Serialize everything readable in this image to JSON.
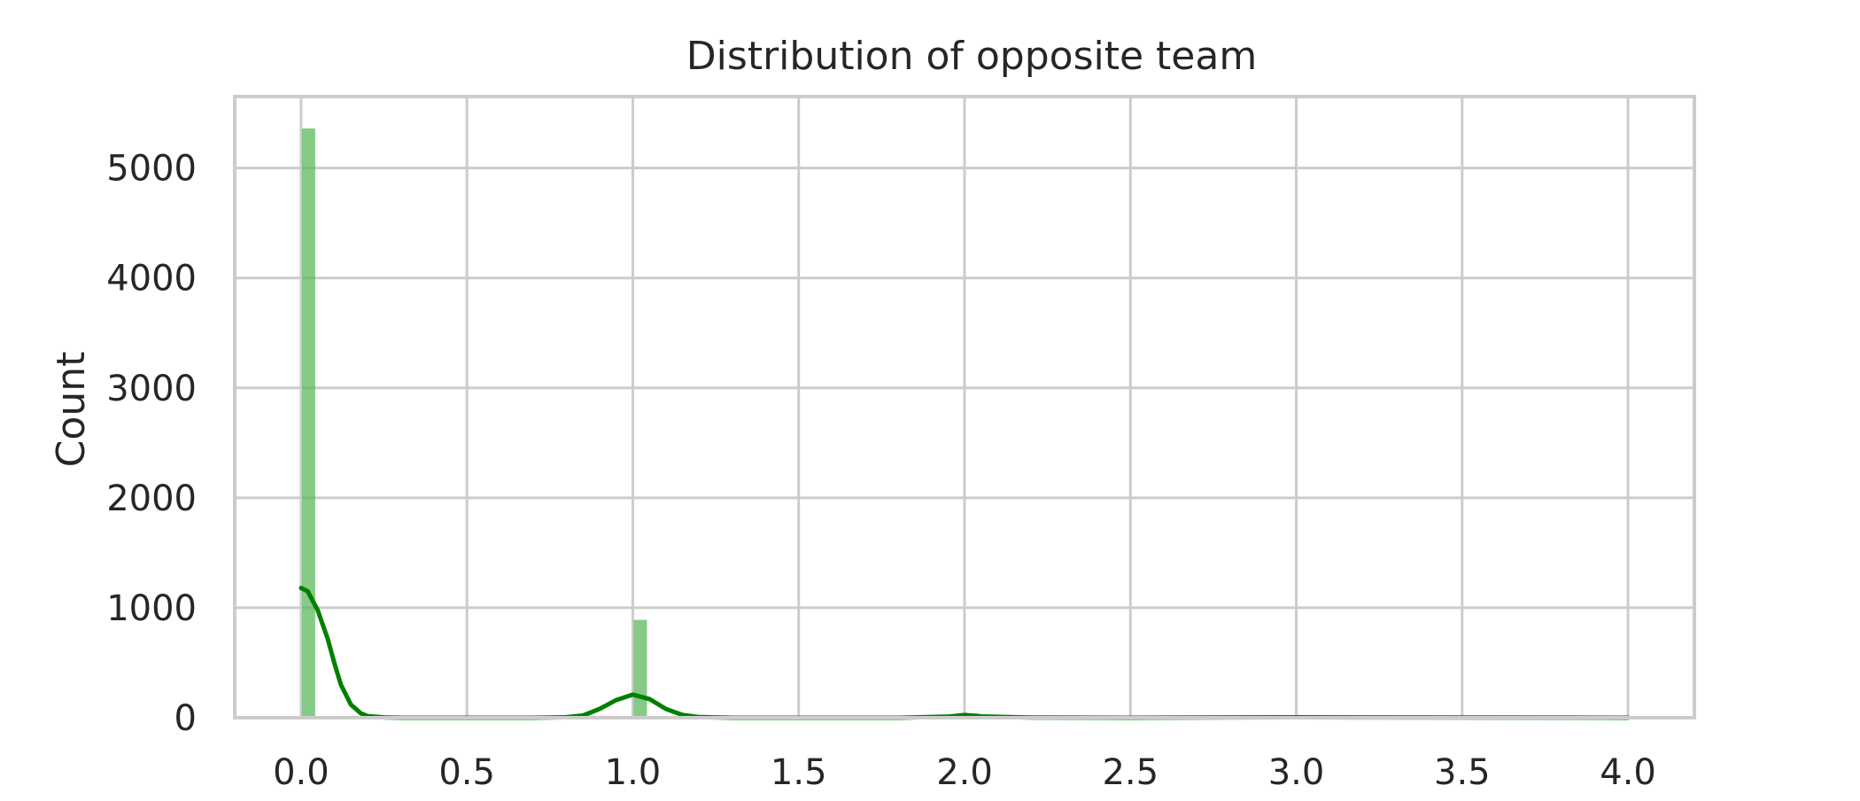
{
  "chart_data": {
    "type": "bar",
    "title": "Distribution of opposite team",
    "xlabel": "",
    "ylabel": "Count",
    "xlim": [
      -0.2,
      4.2
    ],
    "ylim": [
      0,
      5650
    ],
    "x_ticks": [
      "0.0",
      "0.5",
      "1.0",
      "1.5",
      "2.0",
      "2.5",
      "3.0",
      "3.5",
      "4.0"
    ],
    "y_ticks": [
      "0",
      "1000",
      "2000",
      "3000",
      "4000",
      "5000"
    ],
    "grid": true,
    "bar_color": "#5cb85c",
    "kde_color": "#008000",
    "bars": [
      {
        "x": 0.0,
        "count": 5360
      },
      {
        "x": 1.0,
        "count": 890
      },
      {
        "x": 2.0,
        "count": 40
      },
      {
        "x": 3.0,
        "count": 8
      },
      {
        "x": 4.0,
        "count": 3
      }
    ],
    "bin_width": 0.04,
    "kde_curve": {
      "x": [
        0.0,
        0.02,
        0.05,
        0.08,
        0.1,
        0.12,
        0.15,
        0.18,
        0.2,
        0.25,
        0.3,
        0.4,
        0.5,
        0.6,
        0.7,
        0.8,
        0.85,
        0.9,
        0.95,
        1.0,
        1.05,
        1.1,
        1.15,
        1.2,
        1.3,
        1.5,
        1.8,
        1.95,
        2.0,
        2.05,
        2.2,
        2.5,
        3.0,
        3.5,
        4.0
      ],
      "y": [
        1180,
        1150,
        980,
        720,
        500,
        300,
        120,
        40,
        15,
        3,
        0,
        0,
        0,
        0,
        0,
        5,
        20,
        80,
        160,
        210,
        170,
        80,
        25,
        6,
        0,
        0,
        0,
        10,
        25,
        12,
        2,
        0,
        4,
        2,
        0
      ]
    }
  }
}
